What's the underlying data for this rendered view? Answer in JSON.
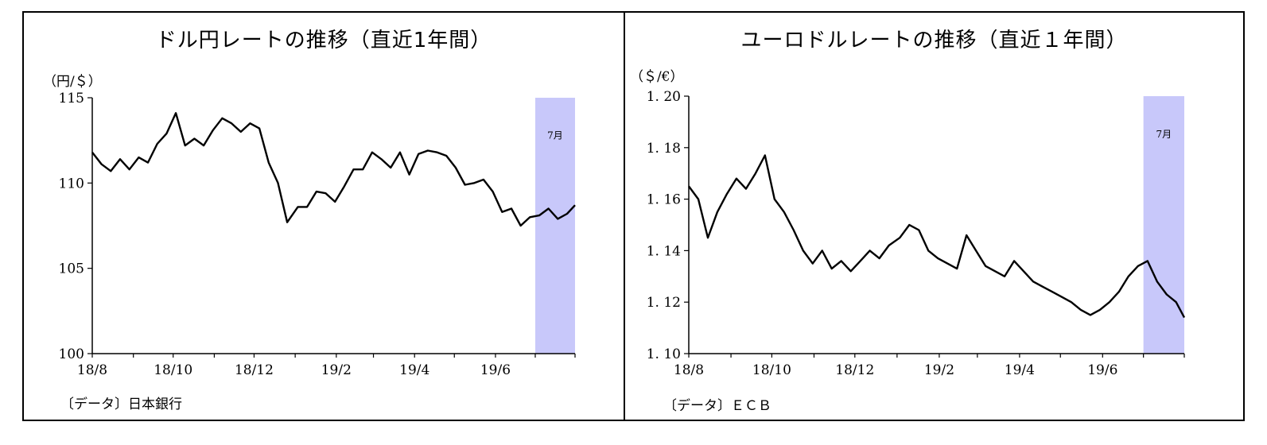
{
  "colors": {
    "line": "#000000",
    "highlight": "#c8c8fa"
  },
  "chart_data": [
    {
      "type": "line",
      "title": "ドル円レートの推移（直近1年間）",
      "unit_label": "（円/＄）",
      "source": "〔データ〕日本銀行",
      "highlight_label": "7月",
      "highlight_range": [
        "2019-07-01",
        "2019-07-31"
      ],
      "ylim": [
        100,
        115
      ],
      "yticks": [
        "115",
        "110",
        "105",
        "100"
      ],
      "xticks": [
        "18/8",
        "18/10",
        "18/12",
        "19/2",
        "19/4",
        "19/6"
      ],
      "x": [
        "2018-08-01",
        "2018-08-08",
        "2018-08-15",
        "2018-08-22",
        "2018-08-29",
        "2018-09-05",
        "2018-09-12",
        "2018-09-19",
        "2018-09-26",
        "2018-10-03",
        "2018-10-10",
        "2018-10-17",
        "2018-10-24",
        "2018-10-31",
        "2018-11-07",
        "2018-11-14",
        "2018-11-21",
        "2018-11-28",
        "2018-12-05",
        "2018-12-12",
        "2018-12-19",
        "2018-12-26",
        "2019-01-03",
        "2019-01-10",
        "2019-01-17",
        "2019-01-24",
        "2019-01-31",
        "2019-02-07",
        "2019-02-14",
        "2019-02-21",
        "2019-02-28",
        "2019-03-07",
        "2019-03-14",
        "2019-03-21",
        "2019-03-28",
        "2019-04-04",
        "2019-04-11",
        "2019-04-18",
        "2019-04-25",
        "2019-05-02",
        "2019-05-09",
        "2019-05-16",
        "2019-05-23",
        "2019-05-30",
        "2019-06-06",
        "2019-06-13",
        "2019-06-20",
        "2019-06-27",
        "2019-07-04",
        "2019-07-11",
        "2019-07-18",
        "2019-07-25",
        "2019-07-31"
      ],
      "series": [
        {
          "values": [
            111.8,
            111.1,
            110.7,
            111.4,
            110.8,
            111.5,
            111.2,
            112.3,
            112.9,
            114.1,
            112.2,
            112.6,
            112.2,
            113.1,
            113.8,
            113.5,
            113.0,
            113.5,
            113.2,
            111.2,
            110.0,
            107.7,
            108.6,
            108.6,
            109.5,
            109.4,
            108.9,
            109.8,
            110.8,
            110.8,
            111.8,
            111.4,
            110.9,
            111.8,
            110.5,
            111.7,
            111.9,
            111.8,
            111.6,
            110.9,
            109.9,
            110.0,
            110.2,
            109.5,
            108.3,
            108.5,
            107.5,
            108.0,
            108.1,
            108.5,
            107.9,
            108.2,
            108.7
          ]
        }
      ]
    },
    {
      "type": "line",
      "title": "ユーロドルレートの推移（直近１年間）",
      "unit_label": "（＄/€）",
      "source": "〔データ〕ＥＣＢ",
      "highlight_label": "7月",
      "highlight_range": [
        "2019-07-01",
        "2019-07-31"
      ],
      "ylim": [
        1.1,
        1.2
      ],
      "yticks": [
        "1. 20",
        "1. 18",
        "1. 16",
        "1. 14",
        "1. 12",
        "1. 10"
      ],
      "xticks": [
        "18/8",
        "18/10",
        "18/12",
        "19/2",
        "19/4",
        "19/6"
      ],
      "x": [
        "2018-08-01",
        "2018-08-08",
        "2018-08-15",
        "2018-08-22",
        "2018-08-29",
        "2018-09-05",
        "2018-09-12",
        "2018-09-19",
        "2018-09-26",
        "2018-10-03",
        "2018-10-10",
        "2018-10-17",
        "2018-10-24",
        "2018-10-31",
        "2018-11-07",
        "2018-11-14",
        "2018-11-21",
        "2018-11-28",
        "2018-12-05",
        "2018-12-12",
        "2018-12-19",
        "2018-12-26",
        "2019-01-03",
        "2019-01-10",
        "2019-01-17",
        "2019-01-24",
        "2019-01-31",
        "2019-02-07",
        "2019-02-14",
        "2019-02-21",
        "2019-02-28",
        "2019-03-07",
        "2019-03-14",
        "2019-03-21",
        "2019-03-28",
        "2019-04-04",
        "2019-04-11",
        "2019-04-18",
        "2019-04-25",
        "2019-05-02",
        "2019-05-09",
        "2019-05-16",
        "2019-05-23",
        "2019-05-30",
        "2019-06-06",
        "2019-06-13",
        "2019-06-20",
        "2019-06-27",
        "2019-07-04",
        "2019-07-11",
        "2019-07-18",
        "2019-07-25",
        "2019-07-31"
      ],
      "series": [
        {
          "values": [
            1.165,
            1.16,
            1.145,
            1.155,
            1.162,
            1.168,
            1.164,
            1.17,
            1.177,
            1.16,
            1.155,
            1.148,
            1.14,
            1.135,
            1.14,
            1.133,
            1.136,
            1.132,
            1.136,
            1.14,
            1.137,
            1.142,
            1.145,
            1.15,
            1.148,
            1.14,
            1.137,
            1.135,
            1.133,
            1.146,
            1.14,
            1.134,
            1.132,
            1.13,
            1.136,
            1.132,
            1.128,
            1.126,
            1.124,
            1.122,
            1.12,
            1.117,
            1.115,
            1.117,
            1.12,
            1.124,
            1.13,
            1.134,
            1.136,
            1.128,
            1.123,
            1.12,
            1.114
          ]
        }
      ]
    }
  ]
}
